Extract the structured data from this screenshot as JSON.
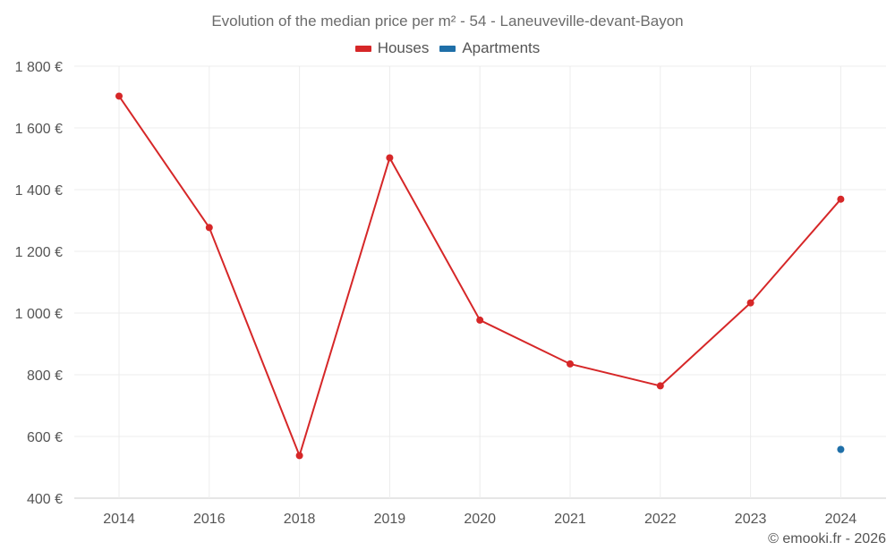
{
  "chart_data": {
    "type": "line",
    "title": "Evolution of the median price per m² - 54 - Laneuveville-devant-Bayon",
    "categories": [
      "2014",
      "2016",
      "2018",
      "2019",
      "2020",
      "2021",
      "2022",
      "2023",
      "2024"
    ],
    "series": [
      {
        "name": "Houses",
        "color": "#d62728",
        "values": [
          1703,
          1277,
          538,
          1503,
          977,
          835,
          764,
          1033,
          1369
        ]
      },
      {
        "name": "Apartments",
        "color": "#1f6fa8",
        "values": [
          null,
          null,
          null,
          null,
          null,
          null,
          null,
          null,
          558
        ]
      }
    ],
    "ylim": [
      400,
      1800
    ],
    "yticks": [
      400,
      600,
      800,
      1000,
      1200,
      1400,
      1600,
      1800
    ],
    "ytick_labels": [
      "400 €",
      "600 €",
      "800 €",
      "1 000 €",
      "1 200 €",
      "1 400 €",
      "1 600 €",
      "1 800 €"
    ],
    "xlabel": "",
    "ylabel": "",
    "grid": true,
    "legend_position": "top-center"
  },
  "credit": "© emooki.fr - 2026"
}
